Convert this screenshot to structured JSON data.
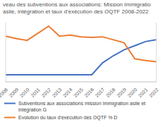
{
  "chart_data": {
    "type": "line",
    "title": "veau des subventions aux associations: Mission Immigratio asile, intégration et taux d'exécution des OQTF 2008-2022",
    "categories": [
      "2008",
      "2009",
      "2010",
      "2011",
      "2012",
      "2013",
      "2014",
      "2015",
      "2016",
      "2017",
      "2018",
      "2019",
      "2020",
      "2021",
      "2022"
    ],
    "series": [
      {
        "name": "Subventions aux associations mission Immigration asile et intégration G",
        "color": "#4472c4",
        "axis": "y",
        "values": [
          12,
          12,
          12,
          12,
          12,
          12,
          12,
          12,
          12,
          32,
          44,
          54,
          61,
          68,
          71
        ]
      },
      {
        "name": "Evolution du taux d'exécution des OQTF % D",
        "color": "#ed7d31",
        "axis": "y2",
        "values": [
          77,
          73,
          70,
          82,
          94,
          77,
          79,
          76,
          75,
          76,
          71,
          66,
          39,
          36,
          34
        ]
      }
    ],
    "ylim": [
      0,
      100
    ],
    "y2lim": [
      0,
      100
    ],
    "tick_labels": "x",
    "grid": false,
    "legend": "bottom"
  }
}
